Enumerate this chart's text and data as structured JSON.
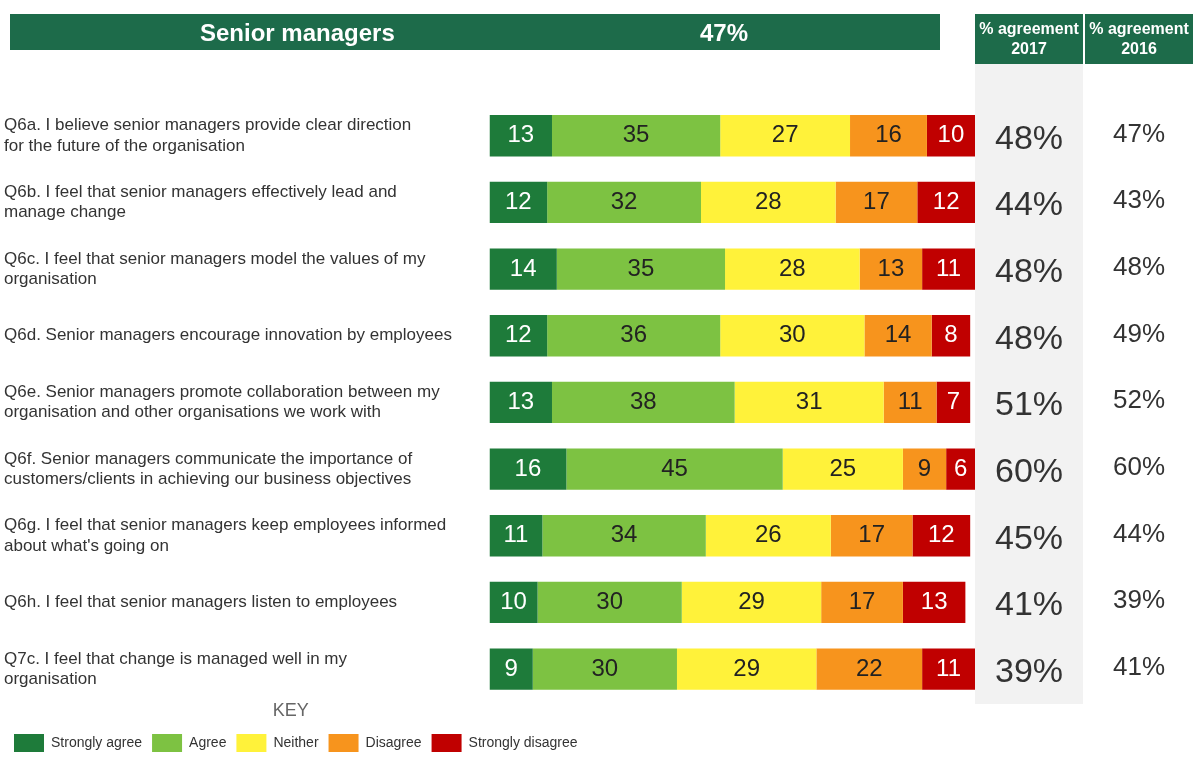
{
  "chart_data": [
    {
      "type": "bar",
      "title": "Senior managers",
      "subtitle": "47%",
      "orientation": "horizontal",
      "stacked": true,
      "data_labels": true,
      "tick_labels": "y",
      "legend": "bottom left",
      "legend_title": "KEY",
      "xlim": [
        0,
        101
      ],
      "categories": [
        "Q6a. I believe senior managers provide clear direction for the future of the organisation",
        "Q6b. I feel that senior managers effectively lead and manage change",
        "Q6c. I feel that senior managers model the values of my organisation",
        "Q6d. Senior managers encourage innovation by employees",
        "Q6e. Senior managers promote collaboration between my organisation and other organisations we work with",
        "Q6f. Senior managers communicate the importance of customers/clients in achieving our business objectives",
        "Q6g. I feel that senior managers keep employees informed about what's going on",
        "Q6h. I feel that senior managers listen to employees",
        "Q7c. I feel that change is managed well in my organisation"
      ],
      "series": [
        {
          "name": "Strongly agree",
          "color": "#1e7b3a",
          "values": [
            13,
            12,
            14,
            12,
            13,
            16,
            11,
            10,
            9
          ]
        },
        {
          "name": "Agree",
          "color": "#7dc242",
          "values": [
            35,
            32,
            35,
            36,
            38,
            45,
            34,
            30,
            30
          ]
        },
        {
          "name": "Neither",
          "color": "#fff23a",
          "values": [
            27,
            28,
            28,
            30,
            31,
            25,
            26,
            29,
            29
          ]
        },
        {
          "name": "Disagree",
          "color": "#f7941d",
          "values": [
            16,
            17,
            13,
            14,
            11,
            9,
            17,
            17,
            22
          ]
        },
        {
          "name": "Strongly disagree",
          "color": "#c00000",
          "values": [
            10,
            12,
            11,
            8,
            7,
            6,
            12,
            13,
            11
          ]
        }
      ]
    },
    {
      "type": "other",
      "title": "% agreement 2017",
      "annotations": [
        "48%",
        "44%",
        "48%",
        "48%",
        "51%",
        "60%",
        "45%",
        "41%",
        "39%"
      ]
    },
    {
      "type": "other",
      "title": "% agreement 2016",
      "annotations": [
        "47%",
        "43%",
        "48%",
        "49%",
        "52%",
        "60%",
        "44%",
        "39%",
        "41%"
      ]
    }
  ]
}
